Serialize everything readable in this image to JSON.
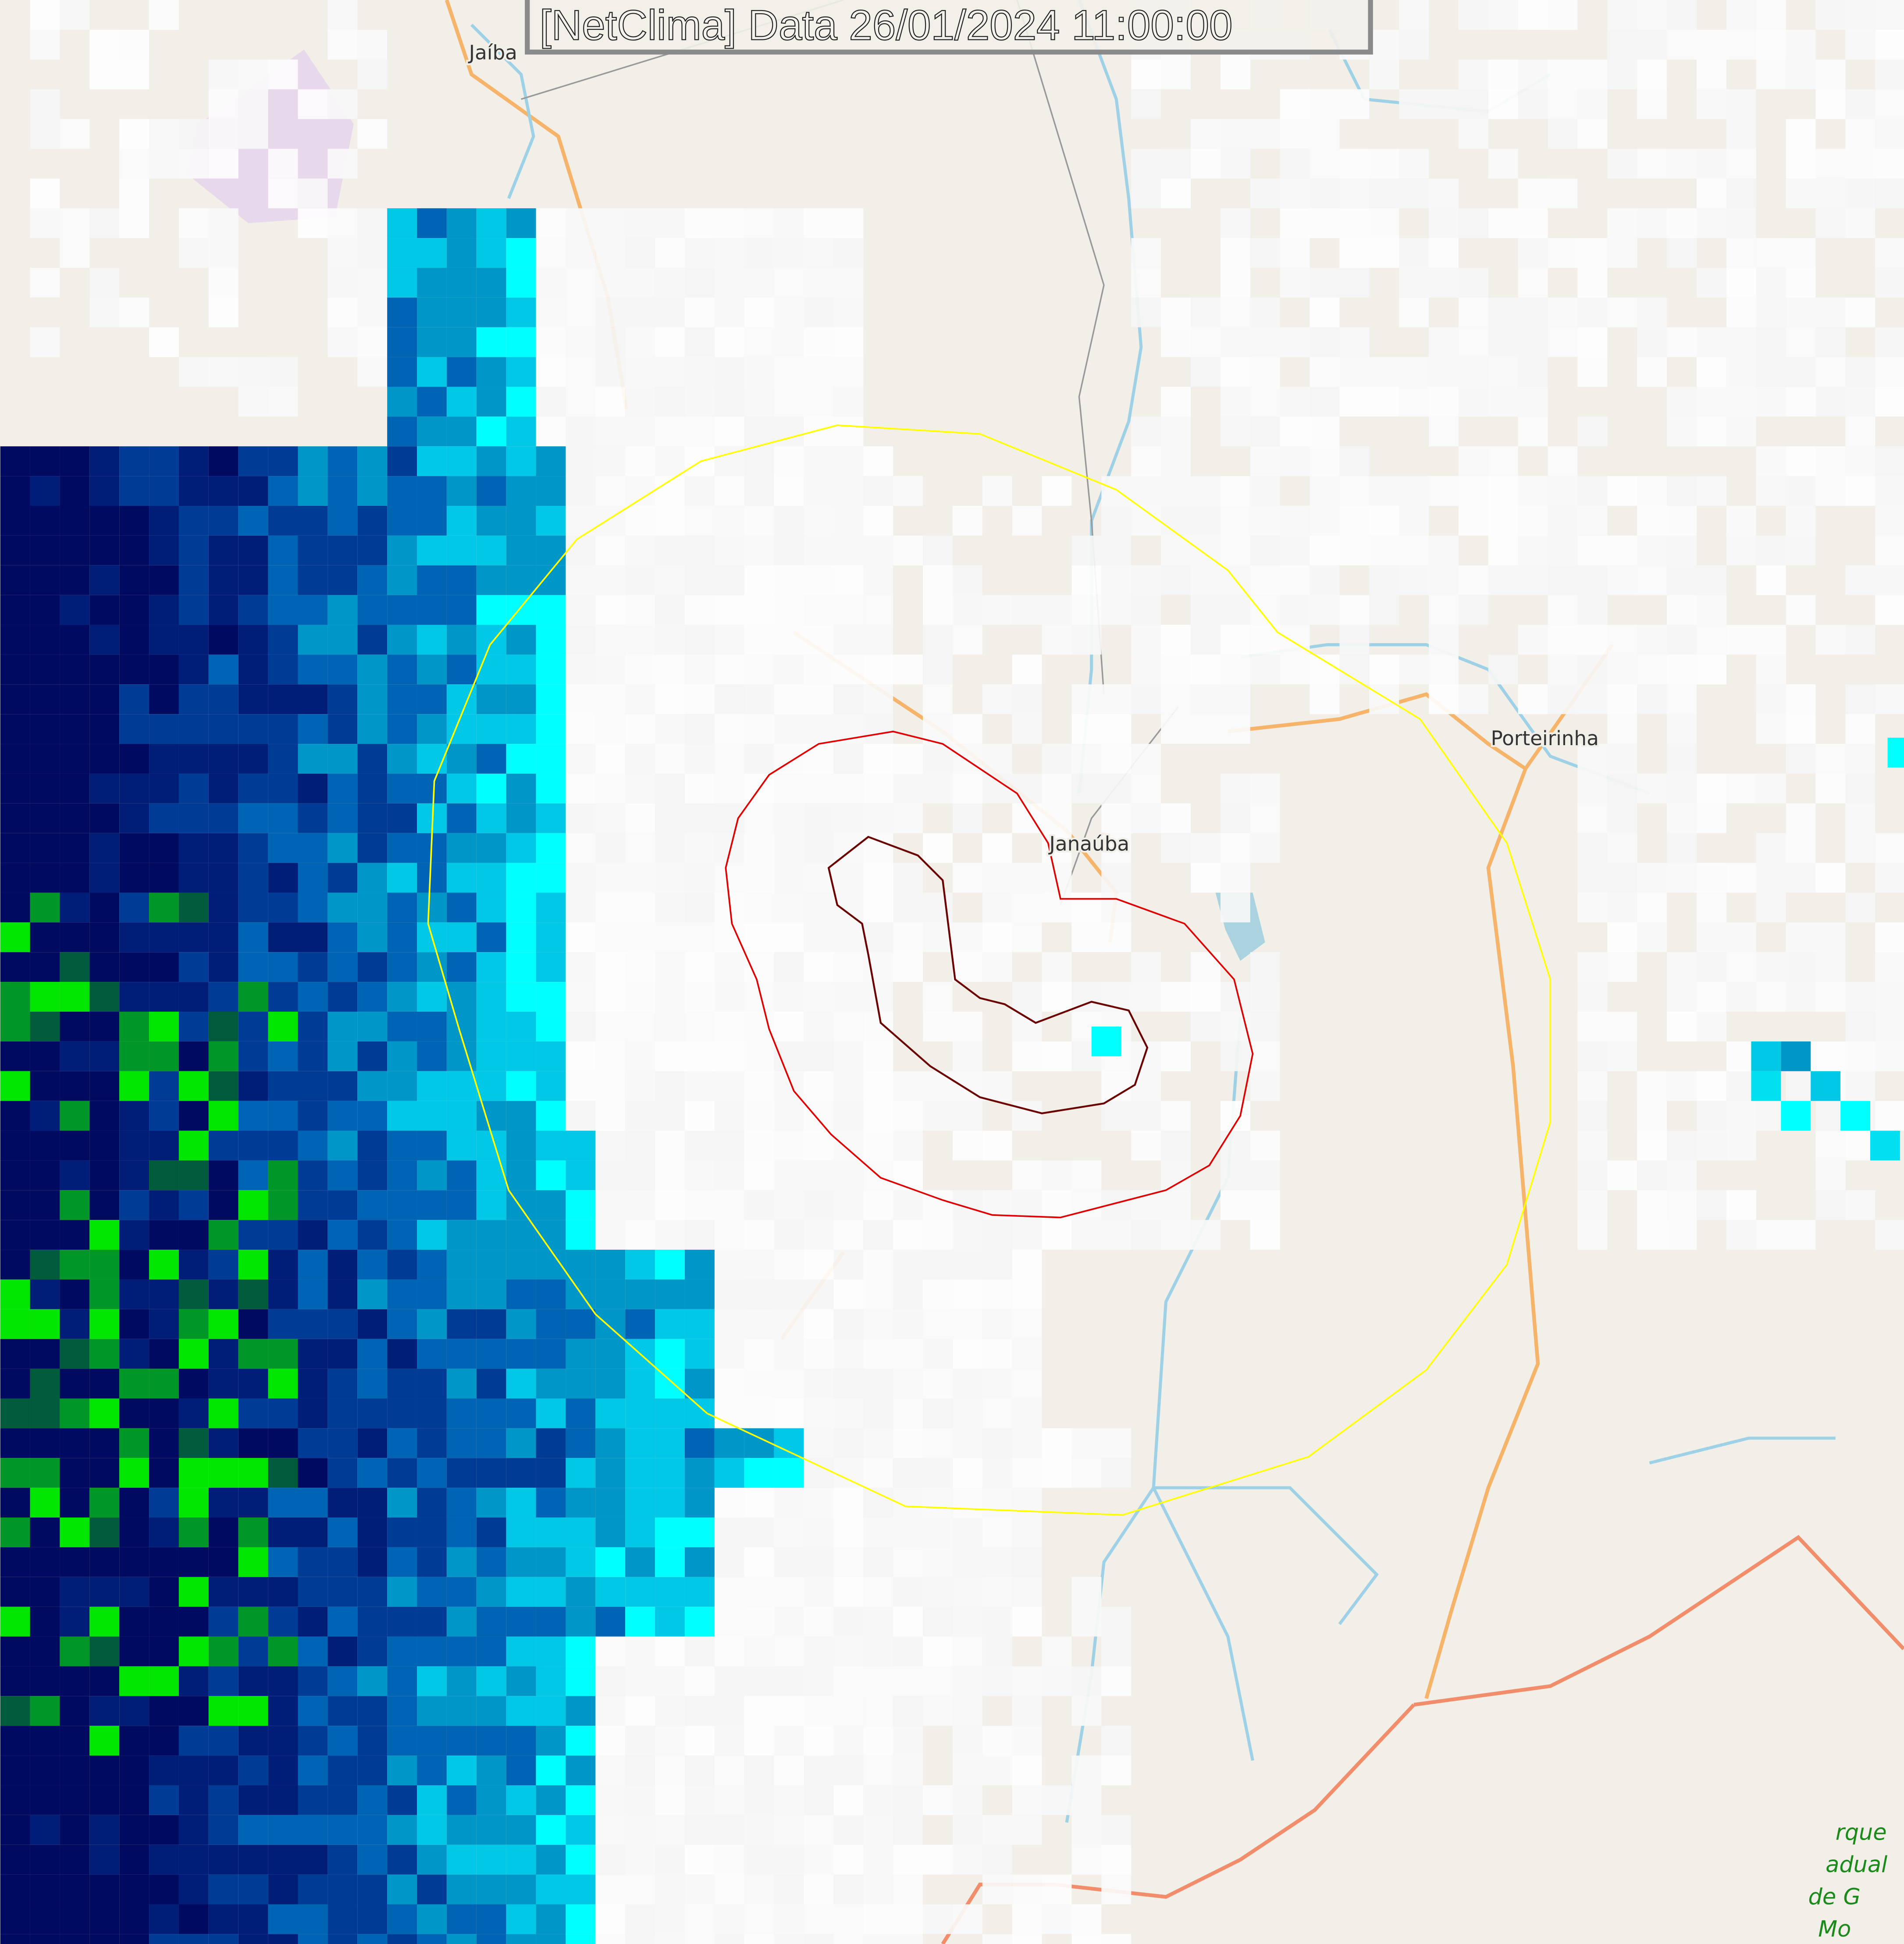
{
  "header": {
    "title": "[NetClima] Data 26/01/2024 11:00:00"
  },
  "places": [
    {
      "name": "Jaíba"
    },
    {
      "name": "Janaúba"
    },
    {
      "name": "Porteirinha"
    }
  ],
  "park_label": [
    "rque",
    "adual",
    "de G",
    "Mo"
  ],
  "colors": {
    "background": "#f2efe9",
    "road": "#f5b46a",
    "river": "#9fd1e6",
    "range_ring": "#ffff00",
    "outer_contour": "#e00000",
    "inner_contour": "#6b0000",
    "radar_scale": [
      "#00ffff",
      "#00c8e6",
      "#0096c8",
      "#0064b4",
      "#003c96",
      "#001e78",
      "#000a60",
      "#005a3c",
      "#009628",
      "#00e600"
    ]
  }
}
